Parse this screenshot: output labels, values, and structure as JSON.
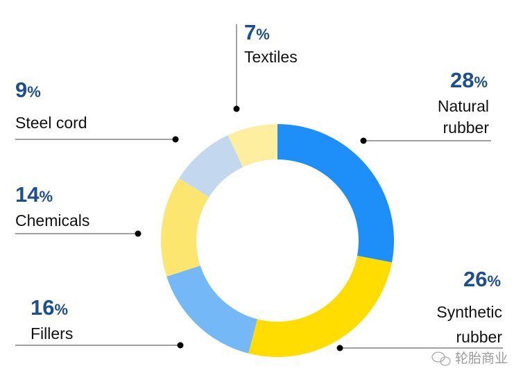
{
  "chart_data": {
    "type": "pie",
    "donut": true,
    "start": "top",
    "direction": "clockwise",
    "slices": [
      {
        "label": "Natural rubber",
        "label_lines": [
          "Natural",
          "rubber"
        ],
        "value": 28,
        "display": "28",
        "color": "#1e8ef8"
      },
      {
        "label": "Synthetic rubber",
        "label_lines": [
          "Synthetic",
          "rubber"
        ],
        "value": 26,
        "display": "26",
        "color": "#ffdd00"
      },
      {
        "label": "Fillers",
        "label_lines": [
          "Fillers"
        ],
        "value": 16,
        "display": "16",
        "color": "#74b8f7"
      },
      {
        "label": "Chemicals",
        "label_lines": [
          "Chemicals"
        ],
        "value": 14,
        "display": "14",
        "color": "#fce670"
      },
      {
        "label": "Steel cord",
        "label_lines": [
          "Steel  cord"
        ],
        "value": 9,
        "display": "9",
        "color": "#c3d8ee"
      },
      {
        "label": "Textiles",
        "label_lines": [
          "Textiles"
        ],
        "value": 7,
        "display": "7",
        "color": "#fdeea0"
      }
    ],
    "unit": "%"
  },
  "watermark": "轮胎商业"
}
